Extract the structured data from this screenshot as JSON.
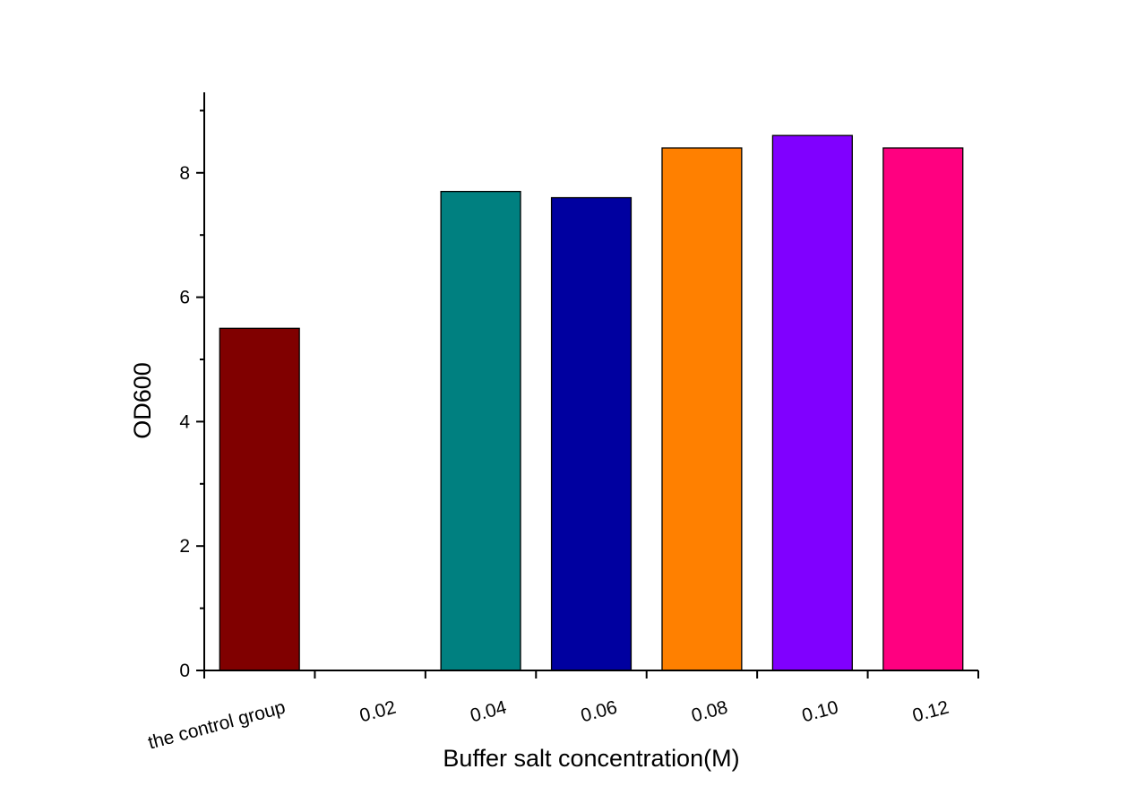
{
  "chart_data": {
    "type": "bar",
    "title": "",
    "xlabel": "Buffer salt concentration(M)",
    "ylabel": "OD600",
    "categories": [
      "the control group",
      "0.02",
      "0.04",
      "0.06",
      "0.08",
      "0.10",
      "0.12"
    ],
    "values": [
      5.5,
      0,
      7.7,
      7.6,
      8.4,
      8.6,
      8.4
    ],
    "colors": [
      "#800000",
      "#008080",
      "#008080",
      "#0000A0",
      "#FF8000",
      "#8000FF",
      "#FF0080"
    ],
    "ylim": [
      0,
      9.3
    ],
    "yticks": [
      0,
      2,
      4,
      6,
      8
    ],
    "yminor": [
      1,
      3,
      5,
      7,
      9
    ],
    "grid": false,
    "legend": "none"
  }
}
